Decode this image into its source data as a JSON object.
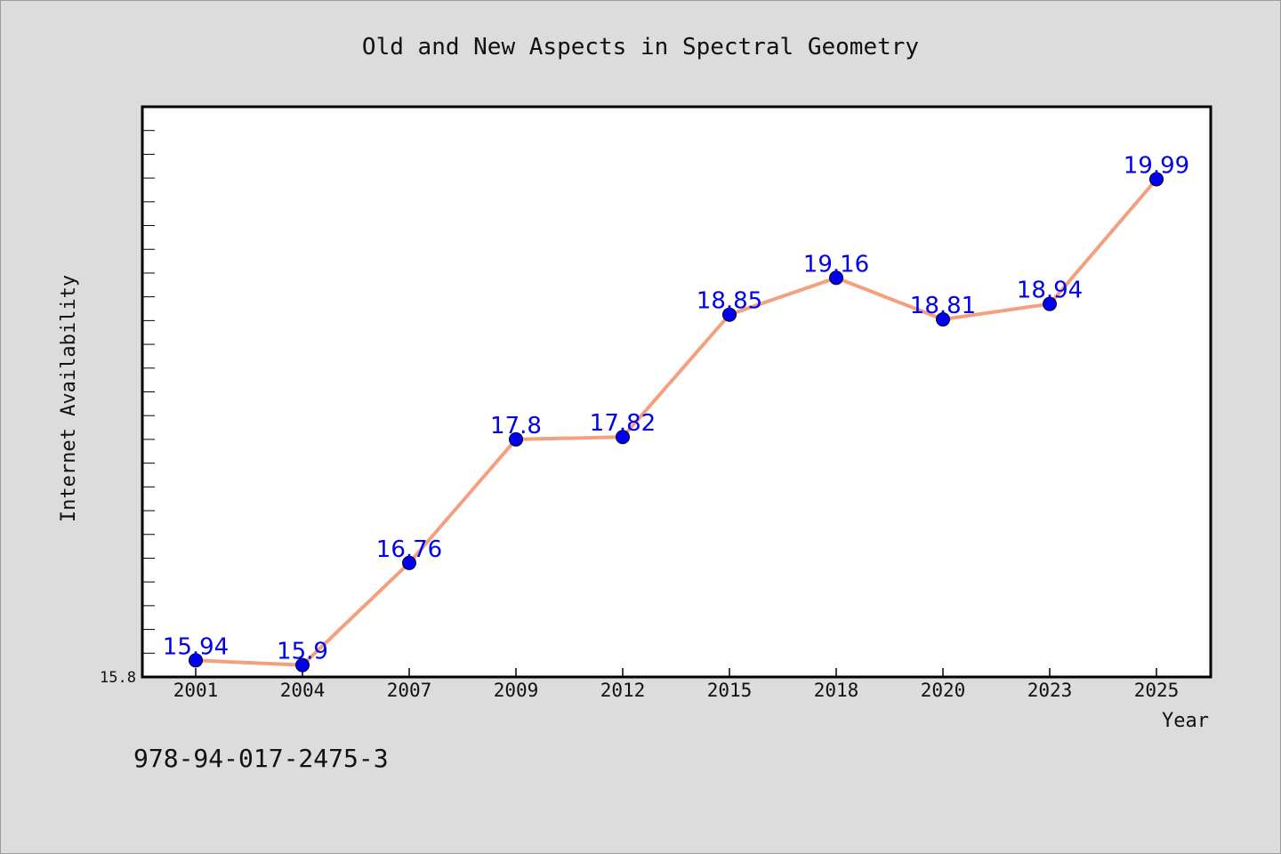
{
  "chart_data": {
    "type": "line",
    "title": "Old and New Aspects in Spectral Geometry",
    "xlabel": "Year",
    "ylabel": "Internet Availability",
    "categories": [
      "2001",
      "2004",
      "2007",
      "2009",
      "2012",
      "2015",
      "2018",
      "2020",
      "2023",
      "2025"
    ],
    "series": [
      {
        "values": [
          15.94,
          15.9,
          16.76,
          17.8,
          17.82,
          18.85,
          19.16,
          18.81,
          18.94,
          19.99
        ]
      }
    ],
    "data_labels": [
      "15.94",
      "15.9",
      "16.76",
      "17.8",
      "17.82",
      "18.85",
      "19.16",
      "18.81",
      "18.94",
      "19.99"
    ],
    "yticks": [
      {
        "value": 15.8,
        "label": "15.8"
      }
    ],
    "ylim": [
      15.8,
      20.6
    ],
    "grid": false,
    "line_color": "#f4a07e",
    "marker_color": "#0000ee",
    "label_color": "#0000ee",
    "plot_background": "#ffffff",
    "figure_background": "#dcdcdc"
  },
  "footer": {
    "isbn": "978-94-017-2475-3"
  }
}
